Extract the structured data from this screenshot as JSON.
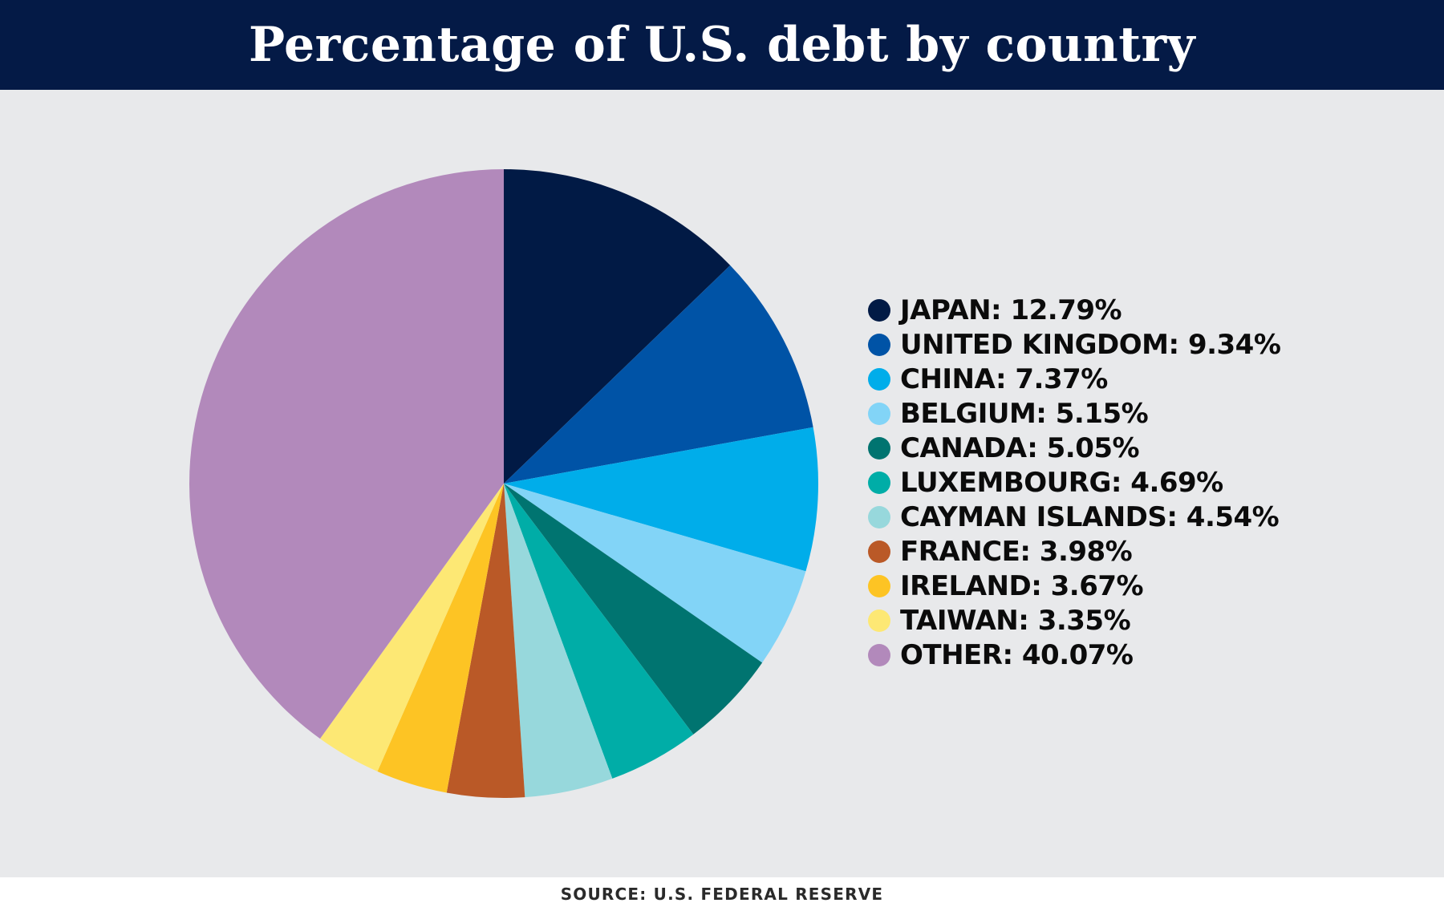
{
  "title": "Percentage of U.S. debt by country",
  "source": "SOURCE: U.S. FEDERAL RESERVE",
  "chart_data": {
    "type": "pie",
    "title": "Percentage of U.S. debt by country",
    "legend_position": "right",
    "slices": [
      {
        "label": "JAPAN",
        "value": 12.79,
        "display": "JAPAN: 12.79%",
        "color": "#011a45"
      },
      {
        "label": "UNITED KINGDOM",
        "value": 9.34,
        "display": "UNITED KINGDOM: 9.34%",
        "color": "#0053a6"
      },
      {
        "label": "CHINA",
        "value": 7.37,
        "display": "CHINA: 7.37%",
        "color": "#00adea"
      },
      {
        "label": "BELGIUM",
        "value": 5.15,
        "display": "BELGIUM: 5.15%",
        "color": "#82d4f7"
      },
      {
        "label": "CANADA",
        "value": 5.05,
        "display": "CANADA: 5.05%",
        "color": "#007470"
      },
      {
        "label": "LUXEMBOURG",
        "value": 4.69,
        "display": "LUXEMBOURG: 4.69%",
        "color": "#00ada7"
      },
      {
        "label": "CAYMAN ISLANDS",
        "value": 4.54,
        "display": "CAYMAN ISLANDS: 4.54%",
        "color": "#97d8dc"
      },
      {
        "label": "FRANCE",
        "value": 3.98,
        "display": "FRANCE: 3.98%",
        "color": "#ba5927"
      },
      {
        "label": "IRELAND",
        "value": 3.67,
        "display": "IRELAND: 3.67%",
        "color": "#fdc424"
      },
      {
        "label": "TAIWAN",
        "value": 3.35,
        "display": "TAIWAN: 3.35%",
        "color": "#fde874"
      },
      {
        "label": "OTHER",
        "value": 40.07,
        "display": "OTHER: 40.07%",
        "color": "#b289bb"
      }
    ]
  }
}
